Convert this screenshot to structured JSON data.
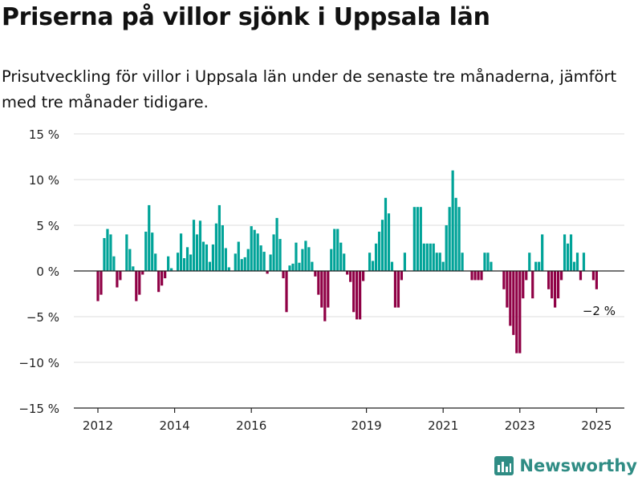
{
  "title": "Priserna på villor sjönk i Uppsala län",
  "subtitle": "Prisutveckling för villor i Uppsala län under de senaste tre månaderna, jämfört med tre månader tidigare.",
  "brand": {
    "name": "Newsworthy",
    "color": "#2f8c84"
  },
  "chart_data": {
    "type": "bar",
    "x_unit": "month",
    "y_ticks": [
      15,
      10,
      5,
      0,
      -5,
      -10,
      -15
    ],
    "y_tick_labels": [
      "15 %",
      "10 %",
      "5 %",
      "0 %",
      "−5 %",
      "−10 %",
      "−15 %"
    ],
    "ylim": [
      -15,
      15
    ],
    "x_ticks": [
      "2012-01",
      "2014-01",
      "2016-01",
      "2019-01",
      "2021-01",
      "2023-01",
      "2025-01"
    ],
    "x_tick_labels": [
      "2012",
      "2014",
      "2016",
      "2019",
      "2021",
      "2023",
      "2025"
    ],
    "xlim": [
      "2011-07",
      "2025-06"
    ],
    "grid": true,
    "colors": {
      "positive": "#00a398",
      "negative": "#8f0045",
      "grid": "#dddddd",
      "axis": "#222222"
    },
    "annotation": {
      "text": "−2 %",
      "month": "2025-01"
    },
    "series": [
      {
        "values": [
          [
            "2012-01",
            -3.3
          ],
          [
            "2012-02",
            -2.6
          ],
          [
            "2012-03",
            3.6
          ],
          [
            "2012-04",
            4.6
          ],
          [
            "2012-05",
            4.0
          ],
          [
            "2012-06",
            1.6
          ],
          [
            "2012-07",
            -1.8
          ],
          [
            "2012-08",
            -1.0
          ],
          [
            "2012-10",
            4.0
          ],
          [
            "2012-11",
            2.4
          ],
          [
            "2012-12",
            0.5
          ],
          [
            "2013-01",
            -3.3
          ],
          [
            "2013-02",
            -2.6
          ],
          [
            "2013-03",
            -0.4
          ],
          [
            "2013-04",
            4.3
          ],
          [
            "2013-05",
            7.2
          ],
          [
            "2013-06",
            4.2
          ],
          [
            "2013-07",
            1.9
          ],
          [
            "2013-08",
            -2.3
          ],
          [
            "2013-09",
            -1.6
          ],
          [
            "2013-10",
            -0.8
          ],
          [
            "2013-11",
            1.6
          ],
          [
            "2013-12",
            0.3
          ],
          [
            "2014-02",
            2.0
          ],
          [
            "2014-03",
            4.1
          ],
          [
            "2014-04",
            1.4
          ],
          [
            "2014-05",
            2.6
          ],
          [
            "2014-06",
            1.8
          ],
          [
            "2014-07",
            5.6
          ],
          [
            "2014-08",
            4.0
          ],
          [
            "2014-09",
            5.5
          ],
          [
            "2014-10",
            3.2
          ],
          [
            "2014-11",
            2.9
          ],
          [
            "2014-12",
            1.0
          ],
          [
            "2015-01",
            2.9
          ],
          [
            "2015-02",
            5.2
          ],
          [
            "2015-03",
            7.2
          ],
          [
            "2015-04",
            5.0
          ],
          [
            "2015-05",
            2.5
          ],
          [
            "2015-06",
            0.4
          ],
          [
            "2015-08",
            1.9
          ],
          [
            "2015-09",
            3.2
          ],
          [
            "2015-10",
            1.3
          ],
          [
            "2015-11",
            1.5
          ],
          [
            "2015-12",
            2.4
          ],
          [
            "2016-01",
            4.9
          ],
          [
            "2016-02",
            4.5
          ],
          [
            "2016-03",
            4.1
          ],
          [
            "2016-04",
            2.8
          ],
          [
            "2016-05",
            2.1
          ],
          [
            "2016-06",
            -0.3
          ],
          [
            "2016-07",
            1.8
          ],
          [
            "2016-08",
            4.0
          ],
          [
            "2016-09",
            5.8
          ],
          [
            "2016-10",
            3.5
          ],
          [
            "2016-11",
            -0.8
          ],
          [
            "2016-12",
            -4.5
          ],
          [
            "2017-01",
            0.6
          ],
          [
            "2017-02",
            0.8
          ],
          [
            "2017-03",
            3.1
          ],
          [
            "2017-04",
            0.9
          ],
          [
            "2017-05",
            2.4
          ],
          [
            "2017-06",
            3.3
          ],
          [
            "2017-07",
            2.6
          ],
          [
            "2017-08",
            1.0
          ],
          [
            "2017-09",
            -0.6
          ],
          [
            "2017-10",
            -2.6
          ],
          [
            "2017-11",
            -4.0
          ],
          [
            "2017-12",
            -5.5
          ],
          [
            "2018-01",
            -4.0
          ],
          [
            "2018-02",
            2.4
          ],
          [
            "2018-03",
            4.6
          ],
          [
            "2018-04",
            4.6
          ],
          [
            "2018-05",
            3.1
          ],
          [
            "2018-06",
            1.9
          ],
          [
            "2018-07",
            -0.4
          ],
          [
            "2018-08",
            -1.2
          ],
          [
            "2018-09",
            -4.5
          ],
          [
            "2018-10",
            -5.3
          ],
          [
            "2018-11",
            -5.3
          ],
          [
            "2018-12",
            -1.1
          ],
          [
            "2019-02",
            2.0
          ],
          [
            "2019-03",
            1.1
          ],
          [
            "2019-04",
            3.0
          ],
          [
            "2019-05",
            4.3
          ],
          [
            "2019-06",
            5.6
          ],
          [
            "2019-07",
            8.0
          ],
          [
            "2019-08",
            6.3
          ],
          [
            "2019-09",
            1.0
          ],
          [
            "2019-10",
            -4.0
          ],
          [
            "2019-11",
            -4.0
          ],
          [
            "2019-12",
            -1.0
          ],
          [
            "2020-01",
            2.0
          ],
          [
            "2020-04",
            7.0
          ],
          [
            "2020-05",
            7.0
          ],
          [
            "2020-06",
            7.0
          ],
          [
            "2020-07",
            3.0
          ],
          [
            "2020-08",
            3.0
          ],
          [
            "2020-09",
            3.0
          ],
          [
            "2020-10",
            3.0
          ],
          [
            "2020-11",
            2.0
          ],
          [
            "2020-12",
            2.0
          ],
          [
            "2021-01",
            1.0
          ],
          [
            "2021-02",
            5.0
          ],
          [
            "2021-03",
            7.0
          ],
          [
            "2021-04",
            11.0
          ],
          [
            "2021-05",
            8.0
          ],
          [
            "2021-06",
            7.0
          ],
          [
            "2021-07",
            2.0
          ],
          [
            "2021-10",
            -1.0
          ],
          [
            "2021-11",
            -1.0
          ],
          [
            "2021-12",
            -1.0
          ],
          [
            "2022-01",
            -1.0
          ],
          [
            "2022-02",
            2.0
          ],
          [
            "2022-03",
            2.0
          ],
          [
            "2022-04",
            1.0
          ],
          [
            "2022-08",
            -2.0
          ],
          [
            "2022-09",
            -4.0
          ],
          [
            "2022-10",
            -6.0
          ],
          [
            "2022-11",
            -7.0
          ],
          [
            "2022-12",
            -9.0
          ],
          [
            "2023-01",
            -9.0
          ],
          [
            "2023-02",
            -3.0
          ],
          [
            "2023-03",
            -1.0
          ],
          [
            "2023-04",
            2.0
          ],
          [
            "2023-05",
            -3.0
          ],
          [
            "2023-06",
            1.0
          ],
          [
            "2023-07",
            1.0
          ],
          [
            "2023-08",
            4.0
          ],
          [
            "2023-10",
            -2.0
          ],
          [
            "2023-11",
            -3.0
          ],
          [
            "2023-12",
            -4.0
          ],
          [
            "2024-01",
            -3.0
          ],
          [
            "2024-02",
            -1.0
          ],
          [
            "2024-03",
            4.0
          ],
          [
            "2024-04",
            3.0
          ],
          [
            "2024-05",
            4.0
          ],
          [
            "2024-06",
            1.0
          ],
          [
            "2024-07",
            2.0
          ],
          [
            "2024-08",
            -1.0
          ],
          [
            "2024-09",
            2.0
          ],
          [
            "2024-12",
            -1.0
          ],
          [
            "2025-01",
            -2.0
          ]
        ]
      }
    ]
  }
}
